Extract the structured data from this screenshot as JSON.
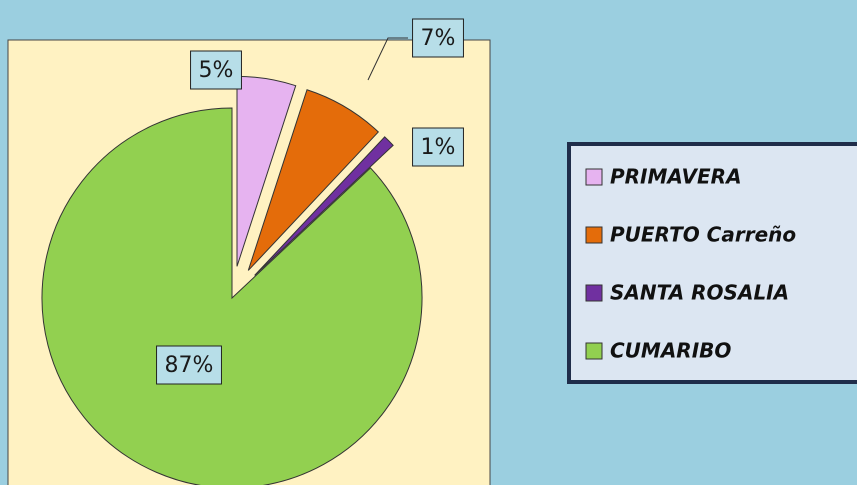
{
  "chart_data": {
    "type": "pie",
    "categories": [
      "PRIMAVERA",
      "PUERTO Carreño",
      "SANTA ROSALIA",
      "CUMARIBO"
    ],
    "values": [
      5,
      7,
      1,
      87
    ],
    "value_labels": [
      "5%",
      "7%",
      "1%",
      "87%"
    ],
    "colors": [
      "#e6b3f0",
      "#e46c0a",
      "#7030a0",
      "#92d050"
    ],
    "legend": "right"
  }
}
